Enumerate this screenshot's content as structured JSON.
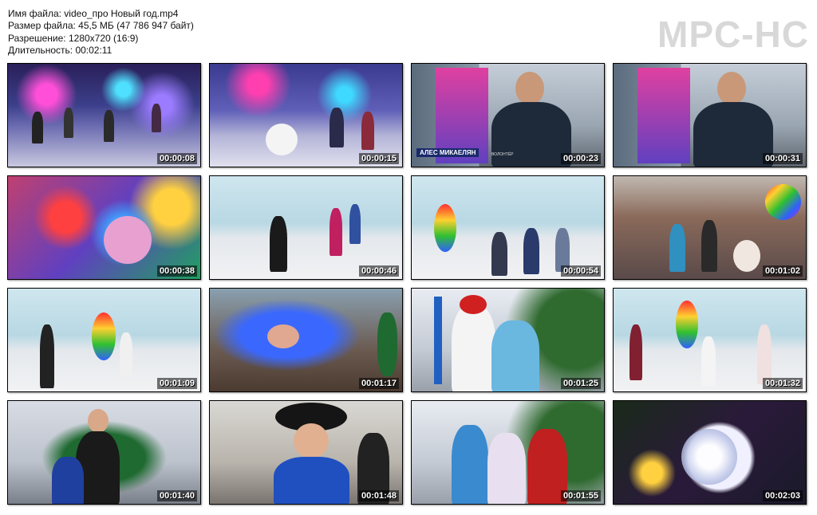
{
  "info": {
    "lines": [
      "Имя файла: video_про Новый год.mp4",
      "Размер файла: 45,5 МБ (47 786 947 байт)",
      "Разрешение: 1280x720 (16:9)",
      "Длительность: 00:02:11"
    ]
  },
  "logo": "MPC-HC",
  "thumbnails": [
    {
      "time": "00:00:08"
    },
    {
      "time": "00:00:15"
    },
    {
      "time": "00:00:23",
      "caption": "АЛЕС МИКАЕЛЯН",
      "caption_sub": "ВОЛОНТЁР"
    },
    {
      "time": "00:00:31"
    },
    {
      "time": "00:00:38"
    },
    {
      "time": "00:00:46"
    },
    {
      "time": "00:00:54"
    },
    {
      "time": "00:01:02"
    },
    {
      "time": "00:01:09"
    },
    {
      "time": "00:01:17"
    },
    {
      "time": "00:01:25"
    },
    {
      "time": "00:01:32"
    },
    {
      "time": "00:01:40"
    },
    {
      "time": "00:01:48"
    },
    {
      "time": "00:01:55"
    },
    {
      "time": "00:02:03"
    }
  ],
  "colors": {
    "logo": "#d8d8d8",
    "timestamp_text": "#ffffff"
  }
}
